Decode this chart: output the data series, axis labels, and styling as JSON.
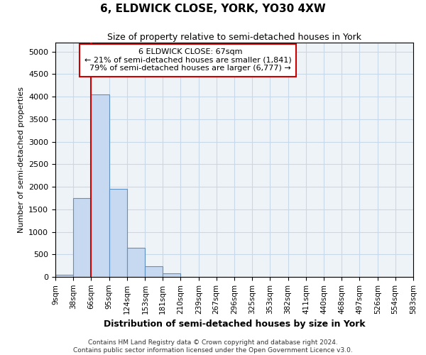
{
  "title": "6, ELDWICK CLOSE, YORK, YO30 4XW",
  "subtitle": "Size of property relative to semi-detached houses in York",
  "xlabel": "Distribution of semi-detached houses by size in York",
  "ylabel": "Number of semi-detached properties",
  "property_label": "6 ELDWICK CLOSE: 67sqm",
  "pct_smaller": 21,
  "n_smaller": "1,841",
  "pct_larger": 79,
  "n_larger": "6,777",
  "bin_edges": [
    9,
    38,
    66,
    95,
    124,
    153,
    181,
    210,
    239,
    267,
    296,
    325,
    353,
    382,
    411,
    440,
    468,
    497,
    526,
    554,
    583
  ],
  "bin_labels": [
    "9sqm",
    "38sqm",
    "66sqm",
    "95sqm",
    "124sqm",
    "153sqm",
    "181sqm",
    "210sqm",
    "239sqm",
    "267sqm",
    "296sqm",
    "325sqm",
    "353sqm",
    "382sqm",
    "411sqm",
    "440sqm",
    "468sqm",
    "497sqm",
    "526sqm",
    "554sqm",
    "583sqm"
  ],
  "bar_heights": [
    50,
    1750,
    4050,
    1950,
    650,
    240,
    80,
    0,
    0,
    0,
    0,
    0,
    0,
    0,
    0,
    0,
    0,
    0,
    0,
    0
  ],
  "bar_color": "#c6d9f0",
  "bar_edge_color": "#6090c0",
  "vline_color": "#cc0000",
  "vline_x": 66,
  "annotation_box_color": "#cc0000",
  "ylim": [
    0,
    5200
  ],
  "yticks": [
    0,
    500,
    1000,
    1500,
    2000,
    2500,
    3000,
    3500,
    4000,
    4500,
    5000
  ],
  "grid_color": "#c8d8e8",
  "footnote": "Contains HM Land Registry data © Crown copyright and database right 2024.\nContains public sector information licensed under the Open Government Licence v3.0.",
  "fig_width": 6.0,
  "fig_height": 5.0
}
